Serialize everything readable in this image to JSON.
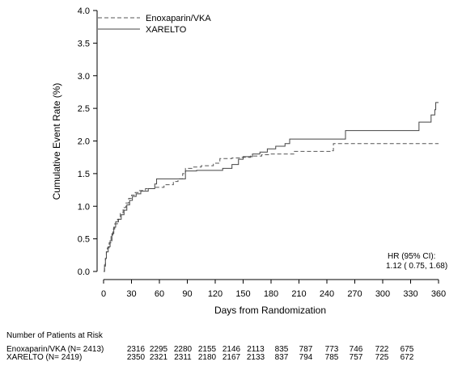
{
  "chart_data": {
    "type": "line",
    "xlabel": "Days from Randomization",
    "ylabel": "Cumulative Event Rate (%)",
    "xlim": [
      0,
      360
    ],
    "ylim": [
      0,
      4.0
    ],
    "xticks": [
      0,
      30,
      60,
      90,
      120,
      150,
      180,
      210,
      240,
      270,
      300,
      330,
      360
    ],
    "yticks": [
      0.0,
      0.5,
      1.0,
      1.5,
      2.0,
      2.5,
      3.0,
      3.5,
      4.0
    ],
    "xtick_labels": [
      "0",
      "30",
      "60",
      "90",
      "120",
      "150",
      "180",
      "210",
      "240",
      "270",
      "300",
      "330",
      "360"
    ],
    "ytick_labels": [
      "0.0",
      "0.5",
      "1.0",
      "1.5",
      "2.0",
      "2.5",
      "3.0",
      "3.5",
      "4.0"
    ],
    "grid": false,
    "legend_placement": "top-left",
    "series": [
      {
        "name": "Enoxaparin/VKA",
        "style": "dashed",
        "color": "#555555",
        "points": [
          [
            0,
            0
          ],
          [
            1,
            0.08
          ],
          [
            2,
            0.2
          ],
          [
            3,
            0.3
          ],
          [
            4,
            0.36
          ],
          [
            6,
            0.44
          ],
          [
            8,
            0.55
          ],
          [
            10,
            0.65
          ],
          [
            12,
            0.73
          ],
          [
            15,
            0.8
          ],
          [
            18,
            0.9
          ],
          [
            21,
            0.98
          ],
          [
            24,
            1.05
          ],
          [
            27,
            1.12
          ],
          [
            30,
            1.17
          ],
          [
            34,
            1.21
          ],
          [
            38,
            1.24
          ],
          [
            45,
            1.27
          ],
          [
            55,
            1.29
          ],
          [
            65,
            1.33
          ],
          [
            75,
            1.38
          ],
          [
            80,
            1.42
          ],
          [
            85,
            1.5
          ],
          [
            88,
            1.58
          ],
          [
            95,
            1.6
          ],
          [
            105,
            1.62
          ],
          [
            118,
            1.66
          ],
          [
            125,
            1.73
          ],
          [
            138,
            1.74
          ],
          [
            148,
            1.75
          ],
          [
            158,
            1.77
          ],
          [
            170,
            1.79
          ],
          [
            178,
            1.8
          ],
          [
            195,
            1.8
          ],
          [
            205,
            1.84
          ],
          [
            230,
            1.84
          ],
          [
            246,
            1.85
          ],
          [
            247,
            1.96
          ],
          [
            360,
            1.96
          ]
        ]
      },
      {
        "name": "XARELTO",
        "style": "solid",
        "color": "#444444",
        "points": [
          [
            0,
            0
          ],
          [
            1,
            0.1
          ],
          [
            2,
            0.2
          ],
          [
            3,
            0.3
          ],
          [
            5,
            0.38
          ],
          [
            7,
            0.47
          ],
          [
            9,
            0.58
          ],
          [
            11,
            0.68
          ],
          [
            13,
            0.76
          ],
          [
            16,
            0.8
          ],
          [
            19,
            0.87
          ],
          [
            22,
            0.94
          ],
          [
            25,
            1.02
          ],
          [
            28,
            1.09
          ],
          [
            31,
            1.15
          ],
          [
            35,
            1.19
          ],
          [
            40,
            1.23
          ],
          [
            48,
            1.27
          ],
          [
            55,
            1.34
          ],
          [
            57,
            1.42
          ],
          [
            70,
            1.42
          ],
          [
            78,
            1.42
          ],
          [
            88,
            1.54
          ],
          [
            100,
            1.55
          ],
          [
            120,
            1.55
          ],
          [
            128,
            1.58
          ],
          [
            138,
            1.64
          ],
          [
            145,
            1.72
          ],
          [
            150,
            1.76
          ],
          [
            160,
            1.8
          ],
          [
            168,
            1.83
          ],
          [
            176,
            1.88
          ],
          [
            185,
            1.92
          ],
          [
            195,
            1.96
          ],
          [
            200,
            2.03
          ],
          [
            245,
            2.03
          ],
          [
            260,
            2.16
          ],
          [
            338,
            2.16
          ],
          [
            339,
            2.29
          ],
          [
            350,
            2.29
          ],
          [
            352,
            2.4
          ],
          [
            356,
            2.48
          ],
          [
            357,
            2.59
          ],
          [
            360,
            2.59
          ]
        ]
      }
    ],
    "annotation": {
      "line1": "HR (95% CI):",
      "line2": "1.12 ( 0.75,  1.68)"
    }
  },
  "risk_table": {
    "title": "Number of Patients at Risk",
    "rows": [
      {
        "label": "Enoxaparin/VKA (N= 2413)",
        "values": [
          "2316",
          "2295",
          "2280",
          "2155",
          "2146",
          "2113",
          "835",
          "787",
          "773",
          "746",
          "722",
          "675"
        ]
      },
      {
        "label": "XARELTO (N= 2419)",
        "values": [
          "2350",
          "2321",
          "2311",
          "2180",
          "2167",
          "2133",
          "837",
          "794",
          "785",
          "757",
          "725",
          "672"
        ]
      }
    ]
  }
}
